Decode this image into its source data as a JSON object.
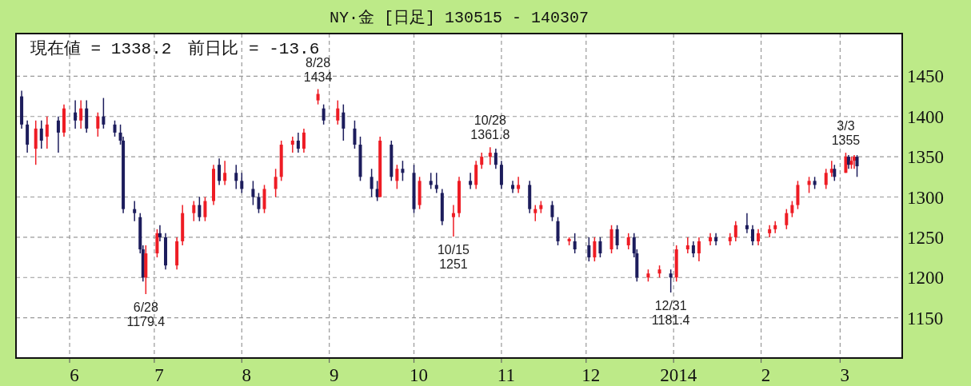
{
  "chart_data": {
    "type": "candlestick",
    "title": "NY·金 [日足] 130515 - 140307",
    "annotations": [
      "現在値 = 1338.2　前日比 = -13.6",
      {
        "text": "6/28 1179.4",
        "x": "2013-06-28",
        "y": 1179.4
      },
      {
        "text": "8/28 1434",
        "x": "2013-08-28",
        "y": 1434
      },
      {
        "text": "10/15 1251",
        "x": "2013-10-15",
        "y": 1251
      },
      {
        "text": "10/28 1361.8",
        "x": "2013-10-28",
        "y": 1361.8
      },
      {
        "text": "12/31 1181.4",
        "x": "2013-12-31",
        "y": 1181.4
      },
      {
        "text": "3/3 1355",
        "x": "2014-03-03",
        "y": 1355
      }
    ],
    "x": [
      "2013-05-15",
      "2013-05-17",
      "2013-05-20",
      "2013-05-22",
      "2013-05-24",
      "2013-05-28",
      "2013-05-30",
      "2013-06-03",
      "2013-06-05",
      "2013-06-07",
      "2013-06-11",
      "2013-06-13",
      "2013-06-17",
      "2013-06-19",
      "2013-06-20",
      "2013-06-24",
      "2013-06-26",
      "2013-06-27",
      "2013-06-28",
      "2013-07-02",
      "2013-07-03",
      "2013-07-05",
      "2013-07-09",
      "2013-07-11",
      "2013-07-15",
      "2013-07-17",
      "2013-07-19",
      "2013-07-22",
      "2013-07-24",
      "2013-07-26",
      "2013-07-30",
      "2013-08-01",
      "2013-08-05",
      "2013-08-07",
      "2013-08-09",
      "2013-08-13",
      "2013-08-15",
      "2013-08-19",
      "2013-08-21",
      "2013-08-23",
      "2013-08-28",
      "2013-08-30",
      "2013-09-04",
      "2013-09-06",
      "2013-09-10",
      "2013-09-12",
      "2013-09-16",
      "2013-09-18",
      "2013-09-19",
      "2013-09-23",
      "2013-09-25",
      "2013-09-27",
      "2013-10-01",
      "2013-10-03",
      "2013-10-07",
      "2013-10-09",
      "2013-10-11",
      "2013-10-15",
      "2013-10-17",
      "2013-10-21",
      "2013-10-23",
      "2013-10-25",
      "2013-10-28",
      "2013-10-30",
      "2013-11-01",
      "2013-11-05",
      "2013-11-07",
      "2013-11-11",
      "2013-11-13",
      "2013-11-15",
      "2013-11-19",
      "2013-11-21",
      "2013-11-25",
      "2013-11-27",
      "2013-12-02",
      "2013-12-04",
      "2013-12-06",
      "2013-12-10",
      "2013-12-12",
      "2013-12-16",
      "2013-12-18",
      "2013-12-19",
      "2013-12-23",
      "2013-12-27",
      "2013-12-31",
      "2014-01-02",
      "2014-01-06",
      "2014-01-08",
      "2014-01-10",
      "2014-01-14",
      "2014-01-16",
      "2014-01-21",
      "2014-01-23",
      "2014-01-27",
      "2014-01-29",
      "2014-01-31",
      "2014-02-04",
      "2014-02-06",
      "2014-02-10",
      "2014-02-12",
      "2014-02-14",
      "2014-02-18",
      "2014-02-20",
      "2014-02-24",
      "2014-02-26",
      "2014-02-27",
      "2014-03-03",
      "2014-03-04",
      "2014-03-05",
      "2014-03-06",
      "2014-03-07"
    ],
    "ohlc": [
      [
        1425,
        1432,
        1385,
        1390
      ],
      [
        1390,
        1395,
        1355,
        1365
      ],
      [
        1360,
        1395,
        1340,
        1385
      ],
      [
        1385,
        1395,
        1360,
        1370
      ],
      [
        1375,
        1400,
        1360,
        1390
      ],
      [
        1395,
        1400,
        1355,
        1380
      ],
      [
        1380,
        1415,
        1375,
        1410
      ],
      [
        1405,
        1420,
        1385,
        1395
      ],
      [
        1395,
        1420,
        1385,
        1410
      ],
      [
        1410,
        1420,
        1380,
        1385
      ],
      [
        1385,
        1405,
        1375,
        1400
      ],
      [
        1400,
        1423,
        1385,
        1390
      ],
      [
        1390,
        1395,
        1375,
        1380
      ],
      [
        1380,
        1390,
        1365,
        1370
      ],
      [
        1370,
        1375,
        1280,
        1285
      ],
      [
        1285,
        1295,
        1270,
        1280
      ],
      [
        1275,
        1280,
        1230,
        1235
      ],
      [
        1235,
        1240,
        1195,
        1200
      ],
      [
        1200,
        1240,
        1179.4,
        1230
      ],
      [
        1230,
        1260,
        1225,
        1255
      ],
      [
        1255,
        1265,
        1245,
        1250
      ],
      [
        1250,
        1255,
        1210,
        1215
      ],
      [
        1215,
        1250,
        1210,
        1245
      ],
      [
        1245,
        1290,
        1240,
        1280
      ],
      [
        1280,
        1295,
        1270,
        1290
      ],
      [
        1290,
        1300,
        1270,
        1275
      ],
      [
        1275,
        1300,
        1270,
        1295
      ],
      [
        1295,
        1340,
        1290,
        1335
      ],
      [
        1340,
        1348,
        1315,
        1320
      ],
      [
        1320,
        1345,
        1315,
        1330
      ],
      [
        1330,
        1340,
        1310,
        1320
      ],
      [
        1320,
        1330,
        1305,
        1310
      ],
      [
        1310,
        1320,
        1290,
        1300
      ],
      [
        1300,
        1305,
        1280,
        1285
      ],
      [
        1285,
        1315,
        1280,
        1310
      ],
      [
        1310,
        1335,
        1300,
        1325
      ],
      [
        1325,
        1370,
        1320,
        1365
      ],
      [
        1365,
        1375,
        1355,
        1370
      ],
      [
        1370,
        1380,
        1355,
        1360
      ],
      [
        1360,
        1385,
        1355,
        1380
      ],
      [
        1420,
        1434,
        1415,
        1428
      ],
      [
        1410,
        1415,
        1390,
        1395
      ],
      [
        1395,
        1420,
        1390,
        1410
      ],
      [
        1405,
        1415,
        1370,
        1385
      ],
      [
        1385,
        1395,
        1360,
        1365
      ],
      [
        1365,
        1375,
        1320,
        1325
      ],
      [
        1325,
        1335,
        1300,
        1310
      ],
      [
        1310,
        1320,
        1295,
        1300
      ],
      [
        1300,
        1375,
        1300,
        1370
      ],
      [
        1365,
        1370,
        1320,
        1325
      ],
      [
        1320,
        1340,
        1310,
        1335
      ],
      [
        1335,
        1345,
        1320,
        1330
      ],
      [
        1330,
        1340,
        1280,
        1285
      ],
      [
        1290,
        1325,
        1285,
        1320
      ],
      [
        1320,
        1330,
        1310,
        1315
      ],
      [
        1315,
        1330,
        1305,
        1310
      ],
      [
        1305,
        1310,
        1265,
        1270
      ],
      [
        1275,
        1290,
        1251,
        1280
      ],
      [
        1280,
        1325,
        1275,
        1320
      ],
      [
        1320,
        1330,
        1310,
        1315
      ],
      [
        1315,
        1345,
        1310,
        1340
      ],
      [
        1340,
        1355,
        1335,
        1350
      ],
      [
        1350,
        1361.8,
        1340,
        1355
      ],
      [
        1355,
        1360,
        1335,
        1340
      ],
      [
        1340,
        1345,
        1310,
        1315
      ],
      [
        1315,
        1320,
        1305,
        1310
      ],
      [
        1310,
        1325,
        1305,
        1315
      ],
      [
        1315,
        1320,
        1280,
        1285
      ],
      [
        1280,
        1290,
        1270,
        1285
      ],
      [
        1285,
        1295,
        1280,
        1290
      ],
      [
        1290,
        1295,
        1270,
        1275
      ],
      [
        1270,
        1275,
        1240,
        1245
      ],
      [
        1245,
        1250,
        1240,
        1248
      ],
      [
        1245,
        1255,
        1230,
        1235
      ],
      [
        1240,
        1250,
        1220,
        1225
      ],
      [
        1225,
        1250,
        1220,
        1245
      ],
      [
        1245,
        1250,
        1225,
        1230
      ],
      [
        1235,
        1265,
        1230,
        1260
      ],
      [
        1260,
        1265,
        1235,
        1240
      ],
      [
        1240,
        1255,
        1235,
        1250
      ],
      [
        1250,
        1255,
        1225,
        1230
      ],
      [
        1230,
        1235,
        1195,
        1200
      ],
      [
        1200,
        1210,
        1195,
        1205
      ],
      [
        1205,
        1215,
        1200,
        1210
      ],
      [
        1205,
        1210,
        1181.4,
        1200
      ],
      [
        1200,
        1240,
        1195,
        1235
      ],
      [
        1235,
        1250,
        1230,
        1240
      ],
      [
        1240,
        1245,
        1225,
        1230
      ],
      [
        1230,
        1250,
        1220,
        1245
      ],
      [
        1245,
        1255,
        1240,
        1250
      ],
      [
        1250,
        1255,
        1240,
        1245
      ],
      [
        1245,
        1255,
        1240,
        1250
      ],
      [
        1250,
        1270,
        1245,
        1265
      ],
      [
        1265,
        1280,
        1255,
        1260
      ],
      [
        1260,
        1265,
        1240,
        1245
      ],
      [
        1245,
        1260,
        1240,
        1255
      ],
      [
        1255,
        1265,
        1250,
        1260
      ],
      [
        1260,
        1270,
        1255,
        1265
      ],
      [
        1265,
        1285,
        1260,
        1280
      ],
      [
        1280,
        1295,
        1275,
        1290
      ],
      [
        1290,
        1320,
        1285,
        1315
      ],
      [
        1315,
        1325,
        1305,
        1320
      ],
      [
        1320,
        1325,
        1310,
        1315
      ],
      [
        1315,
        1335,
        1310,
        1330
      ],
      [
        1330,
        1345,
        1325,
        1335
      ],
      [
        1335,
        1340,
        1320,
        1325
      ],
      [
        1330,
        1355,
        1330,
        1350
      ],
      [
        1350,
        1352,
        1335,
        1340
      ],
      [
        1340,
        1350,
        1335,
        1345
      ],
      [
        1345,
        1352,
        1335,
        1350
      ],
      [
        1350,
        1352,
        1325,
        1338.2
      ]
    ],
    "xlim": [
      "2013-05-13",
      "2014-03-23"
    ],
    "xticks": [
      {
        "value": "2013-06-01",
        "label": "6"
      },
      {
        "value": "2013-07-01",
        "label": "7"
      },
      {
        "value": "2013-08-01",
        "label": "8"
      },
      {
        "value": "2013-09-01",
        "label": "9"
      },
      {
        "value": "2013-10-01",
        "label": "10"
      },
      {
        "value": "2013-11-01",
        "label": "11"
      },
      {
        "value": "2013-12-01",
        "label": "12"
      },
      {
        "value": "2014-01-01",
        "label": "2014"
      },
      {
        "value": "2014-02-01",
        "label": "2"
      },
      {
        "value": "2014-03-01",
        "label": "3"
      }
    ],
    "ylim": [
      1100,
      1503
    ],
    "yticks": [
      1150,
      1200,
      1250,
      1300,
      1350,
      1400,
      1450
    ],
    "grid": true
  }
}
